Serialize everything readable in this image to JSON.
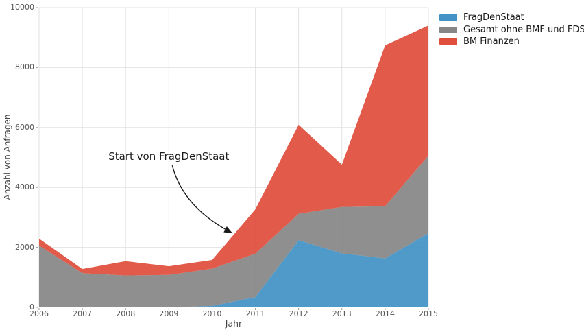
{
  "chart_data": {
    "type": "area",
    "stacked": true,
    "xlabel": "Jahr",
    "ylabel": "Anzahl von Anfragen",
    "categories": [
      2006,
      2007,
      2008,
      2009,
      2010,
      2011,
      2012,
      2013,
      2014,
      2015
    ],
    "series": [
      {
        "name": "FragDenStaat",
        "color": "#4392c6",
        "values": [
          0,
          0,
          0,
          0,
          50,
          340,
          2240,
          1800,
          1630,
          2470
        ]
      },
      {
        "name": "Gesamt ohne BMF und FDS",
        "color": "#868686",
        "values": [
          2060,
          1140,
          1060,
          1080,
          1240,
          1450,
          880,
          1550,
          1740,
          2590
        ]
      },
      {
        "name": "BM Finanzen",
        "color": "#e04f3c",
        "values": [
          230,
          140,
          480,
          290,
          290,
          1480,
          2970,
          1410,
          5370,
          4340
        ]
      }
    ],
    "xlim": [
      2006,
      2015
    ],
    "ylim": [
      0,
      10000
    ],
    "yticks": [
      0,
      2000,
      4000,
      6000,
      8000,
      10000
    ],
    "grid": true,
    "legend_position": "top-right",
    "annotation": {
      "text": "Start von FragDenStaat",
      "xy": [
        2010.45,
        2490
      ],
      "xytext_center": [
        2009.0,
        5030
      ]
    }
  }
}
